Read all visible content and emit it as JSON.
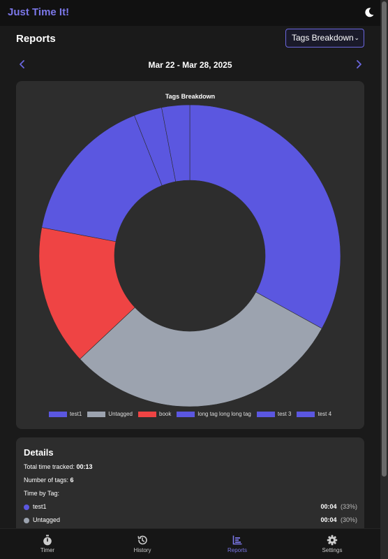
{
  "app": {
    "title": "Just Time It!",
    "theme_icon": "moon-icon"
  },
  "reports": {
    "title": "Reports",
    "view_select": {
      "selected": "Tags Breakdown",
      "caret_icon": "chevron-down-icon"
    },
    "date_range": "Mar 22 - Mar 28, 2025",
    "prev_icon": "chevron-left-icon",
    "next_icon": "chevron-right-icon"
  },
  "chart_data": {
    "type": "pie",
    "variant": "doughnut",
    "title": "Tags Breakdown",
    "labels": [
      "test1",
      "Untagged",
      "book",
      "long tag long long tag",
      "test 3",
      "test 4"
    ],
    "values": [
      33,
      30,
      15,
      16,
      3,
      3
    ],
    "colors": [
      "#5b57e0",
      "#9ca3af",
      "#ef4444",
      "#5b57e0",
      "#5b57e0",
      "#5b57e0"
    ],
    "legend_position": "bottom"
  },
  "details": {
    "title": "Details",
    "total_label": "Total time tracked:",
    "total_value": "00:13",
    "tags_count_label": "Number of tags:",
    "tags_count_value": "6",
    "time_by_tag_label": "Time by Tag:",
    "rows": [
      {
        "name": "test1",
        "duration": "00:04",
        "percent": "(33%)",
        "color": "#5b57e0"
      },
      {
        "name": "Untagged",
        "duration": "00:04",
        "percent": "(30%)",
        "color": "#9ca3af"
      }
    ]
  },
  "bottom_nav": {
    "items": [
      {
        "label": "Timer",
        "icon": "stopwatch-icon"
      },
      {
        "label": "History",
        "icon": "history-icon"
      },
      {
        "label": "Reports",
        "icon": "bar-chart-icon",
        "active": true
      },
      {
        "label": "Settings",
        "icon": "gear-icon"
      }
    ]
  }
}
